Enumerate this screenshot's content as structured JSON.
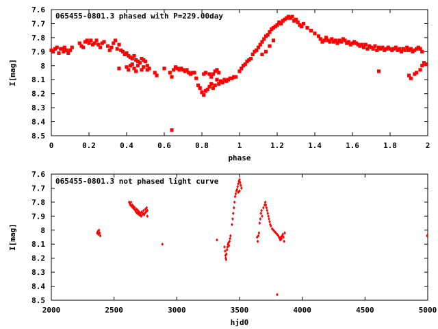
{
  "chart_data": [
    {
      "type": "scatter",
      "title": "065455-0801.3 phased with P=229.00day",
      "xlabel": "phase",
      "ylabel": "I[mag]",
      "xlim": [
        0,
        2
      ],
      "ylim": [
        7.6,
        8.5
      ],
      "y_inverted": true,
      "grid": false,
      "marker_color": "#ff0000",
      "xticks": [
        "0",
        "0.2",
        "0.4",
        "0.6",
        "0.8",
        "1",
        "1.2",
        "1.4",
        "1.6",
        "1.8",
        "2"
      ],
      "yticks": [
        "7.6",
        "7.7",
        "7.8",
        "7.9",
        "8",
        "8.1",
        "8.2",
        "8.3",
        "8.4",
        "8.5"
      ],
      "points": [
        [
          0.0,
          7.89
        ],
        [
          0.01,
          7.9
        ],
        [
          0.02,
          7.88
        ],
        [
          0.03,
          7.87
        ],
        [
          0.04,
          7.91
        ],
        [
          0.05,
          7.88
        ],
        [
          0.06,
          7.88
        ],
        [
          0.065,
          7.9
        ],
        [
          0.07,
          7.87
        ],
        [
          0.08,
          7.89
        ],
        [
          0.09,
          7.91
        ],
        [
          0.1,
          7.89
        ],
        [
          0.11,
          7.87
        ],
        [
          0.15,
          7.84
        ],
        [
          0.16,
          7.86
        ],
        [
          0.17,
          7.87
        ],
        [
          0.18,
          7.83
        ],
        [
          0.19,
          7.82
        ],
        [
          0.2,
          7.84
        ],
        [
          0.21,
          7.82
        ],
        [
          0.22,
          7.85
        ],
        [
          0.23,
          7.84
        ],
        [
          0.24,
          7.82
        ],
        [
          0.25,
          7.85
        ],
        [
          0.26,
          7.87
        ],
        [
          0.27,
          7.84
        ],
        [
          0.28,
          7.83
        ],
        [
          0.3,
          7.86
        ],
        [
          0.31,
          7.89
        ],
        [
          0.32,
          7.87
        ],
        [
          0.33,
          7.84
        ],
        [
          0.34,
          7.82
        ],
        [
          0.35,
          7.88
        ],
        [
          0.36,
          7.85
        ],
        [
          0.37,
          7.89
        ],
        [
          0.38,
          7.9
        ],
        [
          0.39,
          7.92
        ],
        [
          0.4,
          7.91
        ],
        [
          0.41,
          7.93
        ],
        [
          0.42,
          7.94
        ],
        [
          0.43,
          7.95
        ],
        [
          0.44,
          7.93
        ],
        [
          0.45,
          7.96
        ],
        [
          0.46,
          7.97
        ],
        [
          0.47,
          7.98
        ],
        [
          0.48,
          7.95
        ],
        [
          0.49,
          7.96
        ],
        [
          0.5,
          7.97
        ],
        [
          0.51,
          8.0
        ],
        [
          0.36,
          8.02
        ],
        [
          0.4,
          8.01
        ],
        [
          0.41,
          8.03
        ],
        [
          0.42,
          8.0
        ],
        [
          0.43,
          7.99
        ],
        [
          0.44,
          8.02
        ],
        [
          0.45,
          8.04
        ],
        [
          0.46,
          8.0
        ],
        [
          0.48,
          8.03
        ],
        [
          0.49,
          8.01
        ],
        [
          0.51,
          8.03
        ],
        [
          0.52,
          8.02
        ],
        [
          0.55,
          8.05
        ],
        [
          0.56,
          8.07
        ],
        [
          0.6,
          8.02
        ],
        [
          0.63,
          8.05
        ],
        [
          0.64,
          8.08
        ],
        [
          0.65,
          8.03
        ],
        [
          0.66,
          8.01
        ],
        [
          0.67,
          8.02
        ],
        [
          0.68,
          8.03
        ],
        [
          0.69,
          8.02
        ],
        [
          0.7,
          8.03
        ],
        [
          0.71,
          8.04
        ],
        [
          0.72,
          8.03
        ],
        [
          0.73,
          8.05
        ],
        [
          0.74,
          8.06
        ],
        [
          0.75,
          8.05
        ],
        [
          0.76,
          8.05
        ],
        [
          0.64,
          8.46
        ],
        [
          0.77,
          8.09
        ],
        [
          0.78,
          8.14
        ],
        [
          0.79,
          8.16
        ],
        [
          0.8,
          8.19
        ],
        [
          0.81,
          8.21
        ],
        [
          0.82,
          8.18
        ],
        [
          0.83,
          8.17
        ],
        [
          0.84,
          8.15
        ],
        [
          0.85,
          8.13
        ],
        [
          0.86,
          8.16
        ],
        [
          0.87,
          8.14
        ],
        [
          0.88,
          8.1
        ],
        [
          0.89,
          8.13
        ],
        [
          0.9,
          8.11
        ],
        [
          0.91,
          8.12
        ],
        [
          0.92,
          8.1
        ],
        [
          0.93,
          8.11
        ],
        [
          0.94,
          8.1
        ],
        [
          0.95,
          8.09
        ],
        [
          0.96,
          8.09
        ],
        [
          0.97,
          8.08
        ],
        [
          0.98,
          8.08
        ],
        [
          0.81,
          8.06
        ],
        [
          0.82,
          8.05
        ],
        [
          0.84,
          8.06
        ],
        [
          0.85,
          8.08
        ],
        [
          0.86,
          8.06
        ],
        [
          0.87,
          8.04
        ],
        [
          0.88,
          8.03
        ],
        [
          0.89,
          8.05
        ],
        [
          1.0,
          8.04
        ],
        [
          1.01,
          8.02
        ],
        [
          1.02,
          8.0
        ],
        [
          1.03,
          7.99
        ],
        [
          1.04,
          7.97
        ],
        [
          1.05,
          7.96
        ],
        [
          1.06,
          7.95
        ],
        [
          1.07,
          7.92
        ],
        [
          1.08,
          7.9
        ],
        [
          1.09,
          7.89
        ],
        [
          1.1,
          7.87
        ],
        [
          1.11,
          7.85
        ],
        [
          1.12,
          7.83
        ],
        [
          1.13,
          7.81
        ],
        [
          1.14,
          7.79
        ],
        [
          1.15,
          7.78
        ],
        [
          1.16,
          7.76
        ],
        [
          1.17,
          7.74
        ],
        [
          1.18,
          7.73
        ],
        [
          1.19,
          7.72
        ],
        [
          1.2,
          7.71
        ],
        [
          1.21,
          7.69
        ],
        [
          1.22,
          7.7
        ],
        [
          1.23,
          7.68
        ],
        [
          1.24,
          7.67
        ],
        [
          1.25,
          7.66
        ],
        [
          1.26,
          7.65
        ],
        [
          1.27,
          7.66
        ],
        [
          1.28,
          7.65
        ],
        [
          1.29,
          7.68
        ],
        [
          1.3,
          7.67
        ],
        [
          1.31,
          7.69
        ],
        [
          1.32,
          7.71
        ],
        [
          1.33,
          7.72
        ],
        [
          1.34,
          7.7
        ],
        [
          1.12,
          7.92
        ],
        [
          1.14,
          7.9
        ],
        [
          1.16,
          7.86
        ],
        [
          1.18,
          7.82
        ],
        [
          1.36,
          7.73
        ],
        [
          1.38,
          7.75
        ],
        [
          1.4,
          7.77
        ],
        [
          1.42,
          7.79
        ],
        [
          1.43,
          7.81
        ],
        [
          1.44,
          7.83
        ],
        [
          1.45,
          7.82
        ],
        [
          1.46,
          7.8
        ],
        [
          1.47,
          7.82
        ],
        [
          1.48,
          7.83
        ],
        [
          1.49,
          7.81
        ],
        [
          1.5,
          7.83
        ],
        [
          1.51,
          7.82
        ],
        [
          1.52,
          7.84
        ],
        [
          1.53,
          7.82
        ],
        [
          1.54,
          7.83
        ],
        [
          1.55,
          7.81
        ],
        [
          1.56,
          7.82
        ],
        [
          1.57,
          7.84
        ],
        [
          1.58,
          7.83
        ],
        [
          1.59,
          7.85
        ],
        [
          1.6,
          7.84
        ],
        [
          1.61,
          7.83
        ],
        [
          1.62,
          7.84
        ],
        [
          1.63,
          7.85
        ],
        [
          1.64,
          7.86
        ],
        [
          1.65,
          7.85
        ],
        [
          1.66,
          7.87
        ],
        [
          1.67,
          7.85
        ],
        [
          1.68,
          7.88
        ],
        [
          1.69,
          7.86
        ],
        [
          1.7,
          7.87
        ],
        [
          1.71,
          7.88
        ],
        [
          1.72,
          7.86
        ],
        [
          1.73,
          7.89
        ],
        [
          1.74,
          7.87
        ],
        [
          1.75,
          7.88
        ],
        [
          1.76,
          7.87
        ],
        [
          1.77,
          7.89
        ],
        [
          1.78,
          7.88
        ],
        [
          1.79,
          7.87
        ],
        [
          1.8,
          7.88
        ],
        [
          1.81,
          7.89
        ],
        [
          1.82,
          7.88
        ],
        [
          1.83,
          7.87
        ],
        [
          1.84,
          7.89
        ],
        [
          1.85,
          7.88
        ],
        [
          1.86,
          7.9
        ],
        [
          1.87,
          7.88
        ],
        [
          1.88,
          7.89
        ],
        [
          1.89,
          7.87
        ],
        [
          1.9,
          7.89
        ],
        [
          1.91,
          7.88
        ],
        [
          1.92,
          7.9
        ],
        [
          1.93,
          7.89
        ],
        [
          1.94,
          7.88
        ],
        [
          1.95,
          7.87
        ],
        [
          1.96,
          7.88
        ],
        [
          1.97,
          7.9
        ],
        [
          1.74,
          8.04
        ],
        [
          1.9,
          8.07
        ],
        [
          1.91,
          8.09
        ],
        [
          1.93,
          8.06
        ],
        [
          1.94,
          8.05
        ],
        [
          1.96,
          8.03
        ],
        [
          1.97,
          8.0
        ],
        [
          1.98,
          7.98
        ],
        [
          1.99,
          7.99
        ]
      ]
    },
    {
      "type": "scatter",
      "title": "065455-0801.3 not phased light curve",
      "xlabel": "hjd0",
      "ylabel": "I[mag]",
      "xlim": [
        2000,
        5000
      ],
      "ylim": [
        7.6,
        8.5
      ],
      "y_inverted": true,
      "grid": false,
      "marker_color": "#ff0000",
      "xticks": [
        "2000",
        "2500",
        "3000",
        "3500",
        "4000",
        "4500",
        "5000"
      ],
      "yticks": [
        "7.6",
        "7.7",
        "7.8",
        "7.9",
        "8",
        "8.1",
        "8.2",
        "8.3",
        "8.4",
        "8.5"
      ],
      "points": [
        [
          2365,
          8.02
        ],
        [
          2370,
          8.01
        ],
        [
          2375,
          8.03
        ],
        [
          2380,
          8.0
        ],
        [
          2385,
          8.02
        ],
        [
          2390,
          8.04
        ],
        [
          2372,
          8.02
        ],
        [
          2620,
          7.8
        ],
        [
          2625,
          7.81
        ],
        [
          2630,
          7.82
        ],
        [
          2635,
          7.8
        ],
        [
          2640,
          7.83
        ],
        [
          2645,
          7.82
        ],
        [
          2650,
          7.84
        ],
        [
          2655,
          7.83
        ],
        [
          2660,
          7.85
        ],
        [
          2665,
          7.84
        ],
        [
          2670,
          7.86
        ],
        [
          2675,
          7.87
        ],
        [
          2680,
          7.85
        ],
        [
          2685,
          7.88
        ],
        [
          2690,
          7.86
        ],
        [
          2695,
          7.88
        ],
        [
          2700,
          7.87
        ],
        [
          2705,
          7.89
        ],
        [
          2710,
          7.88
        ],
        [
          2715,
          7.9
        ],
        [
          2720,
          7.87
        ],
        [
          2725,
          7.89
        ],
        [
          2730,
          7.88
        ],
        [
          2735,
          7.86
        ],
        [
          2740,
          7.89
        ],
        [
          2745,
          7.88
        ],
        [
          2750,
          7.85
        ],
        [
          2755,
          7.87
        ],
        [
          2760,
          7.84
        ],
        [
          2765,
          7.86
        ],
        [
          2765,
          7.9
        ],
        [
          2700,
          7.89
        ],
        [
          2690,
          7.87
        ],
        [
          2885,
          8.1
        ],
        [
          3320,
          8.07
        ],
        [
          3380,
          8.12
        ],
        [
          3385,
          8.15
        ],
        [
          3388,
          8.18
        ],
        [
          3390,
          8.2
        ],
        [
          3393,
          8.21
        ],
        [
          3396,
          8.17
        ],
        [
          3400,
          8.14
        ],
        [
          3404,
          8.12
        ],
        [
          3408,
          8.1
        ],
        [
          3412,
          8.09
        ],
        [
          3416,
          8.11
        ],
        [
          3420,
          8.08
        ],
        [
          3424,
          8.06
        ],
        [
          3428,
          8.04
        ],
        [
          3440,
          7.96
        ],
        [
          3445,
          7.92
        ],
        [
          3450,
          7.88
        ],
        [
          3455,
          7.84
        ],
        [
          3460,
          7.8
        ],
        [
          3465,
          7.76
        ],
        [
          3470,
          7.74
        ],
        [
          3475,
          7.72
        ],
        [
          3480,
          7.71
        ],
        [
          3485,
          7.69
        ],
        [
          3490,
          7.67
        ],
        [
          3495,
          7.65
        ],
        [
          3500,
          7.64
        ],
        [
          3505,
          7.66
        ],
        [
          3510,
          7.68
        ],
        [
          3515,
          7.7
        ],
        [
          3490,
          7.73
        ],
        [
          3500,
          7.72
        ],
        [
          3640,
          8.05
        ],
        [
          3645,
          8.08
        ],
        [
          3650,
          8.04
        ],
        [
          3655,
          8.02
        ],
        [
          3660,
          7.95
        ],
        [
          3665,
          7.92
        ],
        [
          3670,
          7.88
        ],
        [
          3675,
          7.86
        ],
        [
          3680,
          7.9
        ],
        [
          3690,
          7.84
        ],
        [
          3700,
          7.82
        ],
        [
          3705,
          7.8
        ],
        [
          3710,
          7.82
        ],
        [
          3715,
          7.84
        ],
        [
          3720,
          7.86
        ],
        [
          3725,
          7.88
        ],
        [
          3730,
          7.9
        ],
        [
          3735,
          7.92
        ],
        [
          3740,
          7.94
        ],
        [
          3745,
          7.96
        ],
        [
          3750,
          7.97
        ],
        [
          3760,
          7.99
        ],
        [
          3770,
          8.0
        ],
        [
          3780,
          8.01
        ],
        [
          3790,
          8.02
        ],
        [
          3800,
          8.03
        ],
        [
          3810,
          8.04
        ],
        [
          3815,
          8.05
        ],
        [
          3820,
          8.06
        ],
        [
          3825,
          8.07
        ],
        [
          3830,
          8.05
        ],
        [
          3835,
          8.06
        ],
        [
          3840,
          8.04
        ],
        [
          3845,
          8.03
        ],
        [
          3850,
          8.05
        ],
        [
          3855,
          8.08
        ],
        [
          3860,
          8.02
        ],
        [
          3800,
          8.46
        ],
        [
          4995,
          8.04
        ]
      ]
    }
  ]
}
